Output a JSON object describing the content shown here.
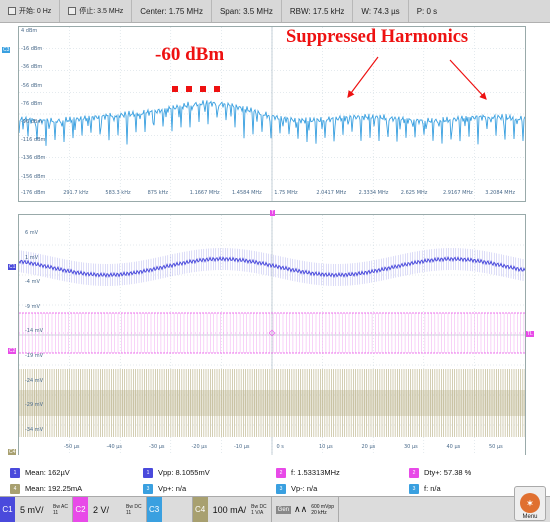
{
  "topbar": {
    "stop_label": "开始: 0 Hz",
    "end_label": "停止: 3.5 MHz",
    "center": "Center: 1.75 MHz",
    "span": "Span: 3.5 MHz",
    "rbw": "RBW: 17.5 kHz",
    "window": "W: 74.3 µs",
    "position": "P: 0 s"
  },
  "fft": {
    "channel_tag": "C3",
    "y_labels": [
      "4 dBm",
      "-16 dBm",
      "-36 dBm",
      "-56 dBm",
      "-76 dBm",
      "-96 dBm",
      "-116 dBm",
      "-136 dBm",
      "-156 dBm"
    ],
    "x_labels": [
      "-176 dBm",
      "291.7 kHz",
      "583.3 kHz",
      "875 kHz",
      "1.1667 MHz",
      "1.4584 MHz",
      "1.75 MHz",
      "2.0417 MHz",
      "2.3334 MHz",
      "2.625 MHz",
      "2.9167 MHz",
      "3.2084 MHz"
    ]
  },
  "annotations": {
    "level": "-60 dBm",
    "harmonics": "Suppressed Harmonics"
  },
  "scope": {
    "trigger_label": "T",
    "c1_tag": "C1",
    "c2_tag": "C2",
    "c4_tag": "C4",
    "tl_tag": "TL",
    "y_labels": [
      "6 mV",
      "1 mV",
      "-4 mV",
      "-9 mV",
      "-14 mV",
      "-19 mV",
      "-24 mV",
      "-29 mV",
      "-34 mV"
    ],
    "x_labels": [
      "-50 µs",
      "-40 µs",
      "-30 µs",
      "-20 µs",
      "-10 µs",
      "0 s",
      "10 µs",
      "20 µs",
      "30 µs",
      "40 µs",
      "50 µs"
    ]
  },
  "measurements": {
    "c1_mean": "Mean: 162µV",
    "c4_mean": "Mean: 192.25mA",
    "c1_vpp": "Vpp: 8.1055mV",
    "c1_vp_plus": "Vp+: n/a",
    "c2_freq": "f: 1.53313MHz",
    "c2_vp_minus": "Vp-: n/a",
    "c2_duty": "Dty+: 57.38 %",
    "c3_freq": "f: n/a"
  },
  "bottombar": {
    "c1_tag": "C1",
    "c1_scale": "5 mV/",
    "c1_coupling": "Bw AC",
    "c1_coupling_b": "11",
    "c2_tag": "C2",
    "c2_scale": "2 V/",
    "c2_coupling": "Bw DC",
    "c2_coupling_b": "11",
    "c3_tag": "C3",
    "c4_tag": "C4",
    "c4_scale": "100 mA/",
    "c4_coupling": "Bw DC",
    "c4_coupling_b": "1 V/A",
    "gen": "Gen",
    "acq_a": "600 mVpp",
    "acq_b": "20 kHz",
    "menu": "Menu"
  },
  "colors": {
    "c1": "#4a4adc",
    "c2": "#e84ae8",
    "c3": "#3aa0e0",
    "c4": "#a8a070",
    "annotation": "#ee1111"
  }
}
